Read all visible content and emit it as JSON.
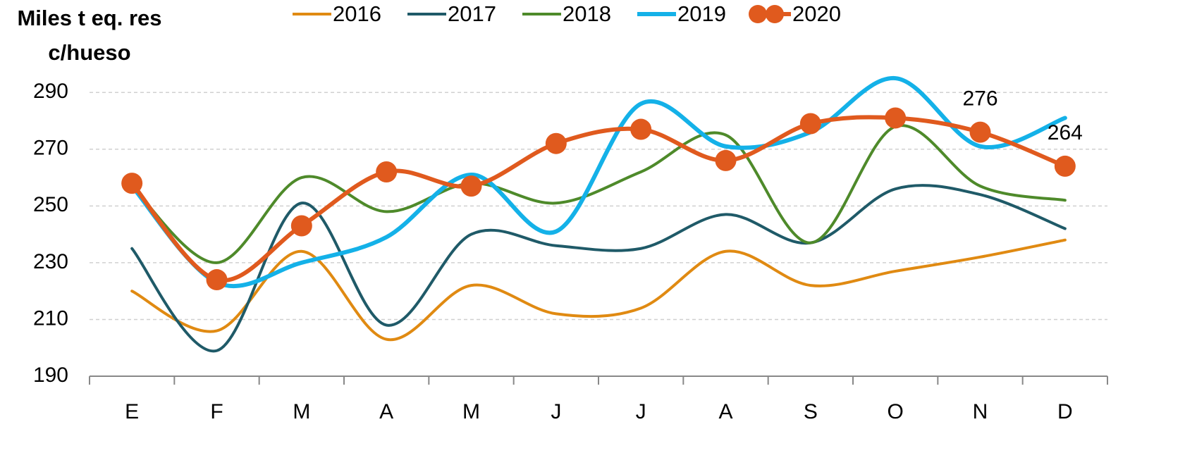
{
  "chart_data": {
    "type": "line",
    "y_label": [
      "Miles t eq. res",
      "c/hueso"
    ],
    "categories": [
      "E",
      "F",
      "M",
      "A",
      "M",
      "J",
      "J",
      "A",
      "S",
      "O",
      "N",
      "D"
    ],
    "series": [
      {
        "name": "2016",
        "color": "#e08a12",
        "values": [
          220,
          206,
          234,
          203,
          222,
          212,
          214,
          234,
          222,
          227,
          232,
          238
        ]
      },
      {
        "name": "2017",
        "color": "#1f5a68",
        "values": [
          235,
          199,
          251,
          208,
          240,
          236,
          235,
          247,
          237,
          256,
          254,
          242
        ]
      },
      {
        "name": "2018",
        "color": "#4e8a2a",
        "values": [
          257,
          230,
          260,
          248,
          258,
          251,
          262,
          275,
          237,
          278,
          257,
          252
        ]
      },
      {
        "name": "2019",
        "color": "#14b1e8",
        "values": [
          257,
          223,
          230,
          239,
          261,
          241,
          286,
          271,
          276,
          295,
          271,
          281
        ]
      },
      {
        "name": "2020",
        "color": "#e05a1e",
        "markers": true,
        "values": [
          258,
          224,
          243,
          262,
          257,
          272,
          277,
          266,
          279,
          281,
          276,
          264
        ],
        "value_labels": [
          null,
          null,
          null,
          null,
          null,
          null,
          null,
          null,
          null,
          null,
          "276",
          "264"
        ]
      }
    ],
    "ylim": [
      190,
      297
    ],
    "yticks": [
      190,
      210,
      230,
      250,
      270,
      290
    ],
    "grid": true
  }
}
